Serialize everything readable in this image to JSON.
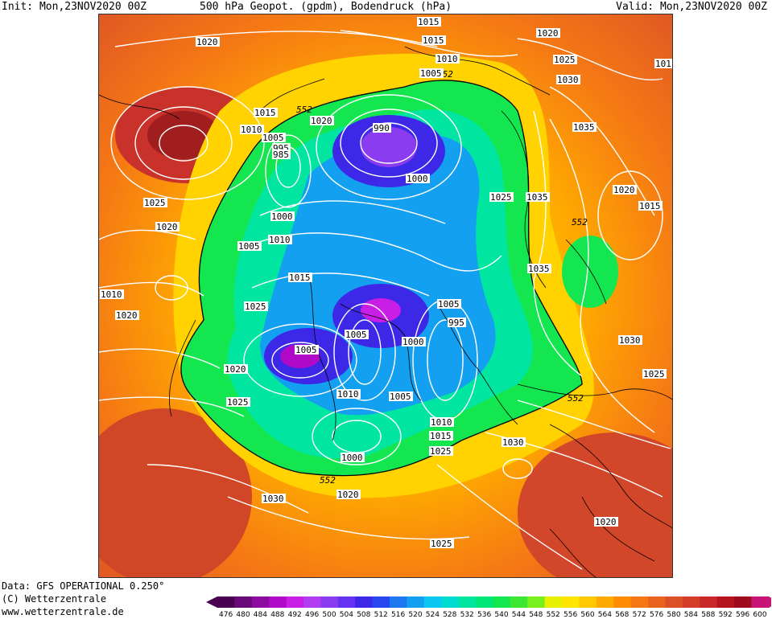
{
  "header": {
    "init": "Init: Mon,23NOV2020 00Z",
    "title": "500 hPa Geopot. (gpdm), Bodendruck (hPa)",
    "valid": "Valid: Mon,23NOV2020 00Z"
  },
  "footer": {
    "data_source": "Data: GFS OPERATIONAL 0.250°",
    "copyright": "(C) Wetterzentrale",
    "url": "www.wetterzentrale.de"
  },
  "legend": {
    "values": [
      "476",
      "480",
      "484",
      "488",
      "492",
      "496",
      "500",
      "504",
      "508",
      "512",
      "516",
      "520",
      "524",
      "528",
      "532",
      "536",
      "540",
      "544",
      "548",
      "552",
      "556",
      "560",
      "564",
      "568",
      "572",
      "576",
      "580",
      "584",
      "588",
      "592",
      "596",
      "600"
    ],
    "colors": [
      "#4a0050",
      "#6a0a78",
      "#8c0aa0",
      "#b00ac8",
      "#c81ee6",
      "#b43cf0",
      "#8c3cf0",
      "#6432f0",
      "#3c28e6",
      "#2846f0",
      "#1e78f0",
      "#14a0f0",
      "#0ac8f0",
      "#00dcd2",
      "#00e6a0",
      "#00e678",
      "#14e650",
      "#3ce632",
      "#78f01e",
      "#e6f000",
      "#ffe600",
      "#ffc800",
      "#ffaa00",
      "#ff8c00",
      "#f57814",
      "#eb641e",
      "#dc5028",
      "#d23c28",
      "#c82828",
      "#b4141e",
      "#a00a1e",
      "#c81478"
    ]
  },
  "isobar_labels": [
    {
      "text": "1020"
    },
    {
      "text": "1015"
    },
    {
      "text": "1015"
    },
    {
      "text": "1010"
    },
    {
      "text": "1005"
    },
    {
      "text": "1020"
    },
    {
      "text": "1025"
    },
    {
      "text": "1030"
    },
    {
      "text": "1015"
    },
    {
      "text": "1010"
    },
    {
      "text": "1005"
    },
    {
      "text": "995"
    },
    {
      "text": "990"
    },
    {
      "text": "1020"
    },
    {
      "text": "985"
    },
    {
      "text": "1000"
    },
    {
      "text": "1035"
    },
    {
      "text": "1025"
    },
    {
      "text": "1035"
    },
    {
      "text": "1020"
    },
    {
      "text": "1015"
    },
    {
      "text": "1025"
    },
    {
      "text": "1020"
    },
    {
      "text": "1000"
    },
    {
      "text": "1005"
    },
    {
      "text": "1010"
    },
    {
      "text": "1015"
    },
    {
      "text": "1035"
    },
    {
      "text": "1025"
    },
    {
      "text": "1020"
    },
    {
      "text": "1005"
    },
    {
      "text": "995"
    },
    {
      "text": "1005"
    },
    {
      "text": "1000"
    },
    {
      "text": "1005"
    },
    {
      "text": "1030"
    },
    {
      "text": "1020"
    },
    {
      "text": "1025"
    },
    {
      "text": "1010"
    },
    {
      "text": "1005"
    },
    {
      "text": "1010"
    },
    {
      "text": "1015"
    },
    {
      "text": "1025"
    },
    {
      "text": "1030"
    },
    {
      "text": "1000"
    },
    {
      "text": "1020"
    },
    {
      "text": "1025"
    },
    {
      "text": "1030"
    },
    {
      "text": "1020"
    },
    {
      "text": "1025"
    },
    {
      "text": "1015"
    },
    {
      "text": "1010"
    },
    {
      "text": "101"
    }
  ],
  "contour_552_labels": [
    "552",
    "552",
    "552",
    "552",
    "552"
  ]
}
